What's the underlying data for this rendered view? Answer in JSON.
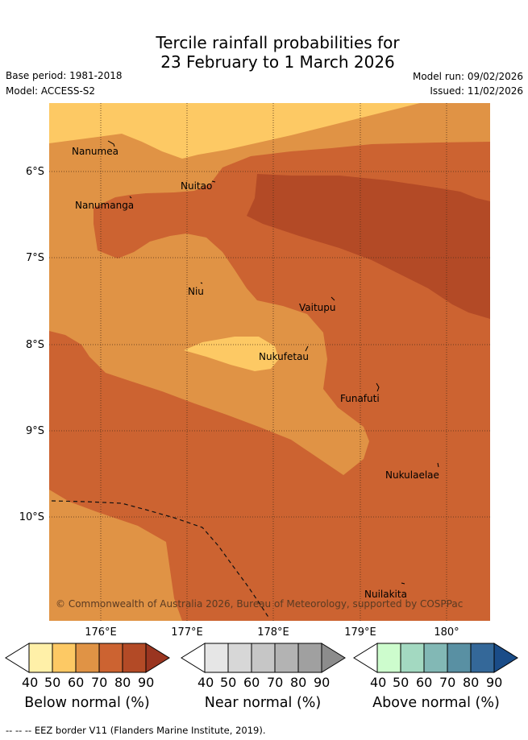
{
  "title": {
    "line1": "Tercile rainfall probabilities for",
    "line2": "23 February to 1 March 2026"
  },
  "meta": {
    "base_period": "Base period: 1981-2018",
    "model": "Model: ACCESS-S2",
    "model_run": "Model run: 09/02/2026",
    "issued": "Issued: 11/02/2026"
  },
  "axes": {
    "lat_labels": [
      "6°S",
      "7°S",
      "8°S",
      "9°S",
      "10°S"
    ],
    "lon_labels": [
      "176°E",
      "177°E",
      "178°E",
      "179°E",
      "180°"
    ]
  },
  "islands": [
    "Nanumea",
    "Nuitao",
    "Nanumanga",
    "Niu",
    "Vaitupu",
    "Nukufetau",
    "Funafuti",
    "Nukulaelae",
    "Nuilakita"
  ],
  "copyright": "© Commonwealth of Australia 2026, Bureau of Meteorology, supported by COSPPac",
  "colorbars": [
    {
      "title": "Below normal (%)",
      "ticks": [
        "40",
        "50",
        "60",
        "70",
        "80",
        "90"
      ],
      "colors": [
        "#ffffff",
        "#fff0a8",
        "#fdc964",
        "#e09345",
        "#cc6331",
        "#b34a26",
        "#9a3520"
      ]
    },
    {
      "title": "Near normal (%)",
      "ticks": [
        "40",
        "50",
        "60",
        "70",
        "80",
        "90"
      ],
      "colors": [
        "#ffffff",
        "#e6e6e6",
        "#d7d7d7",
        "#c6c6c6",
        "#b3b3b3",
        "#a0a0a0",
        "#8c8c8c"
      ]
    },
    {
      "title": "Above normal (%)",
      "ticks": [
        "40",
        "50",
        "60",
        "70",
        "80",
        "90"
      ],
      "colors": [
        "#ffffff",
        "#cdfccd",
        "#a3d9c1",
        "#82b8b5",
        "#5990a3",
        "#346899",
        "#1a4c88"
      ]
    }
  ],
  "footnote": "-- -- -- EEZ border V11 (Flanders Marine Institute, 2019)."
}
